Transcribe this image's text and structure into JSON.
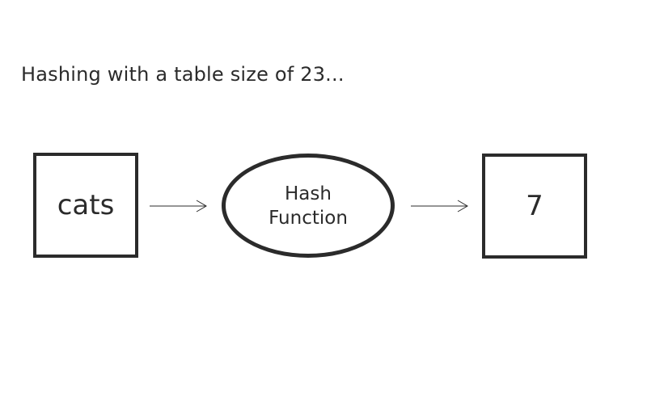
{
  "caption": "Hashing with a table size of 23...",
  "diagram": {
    "input_label": "cats",
    "function_line1": "Hash",
    "function_line2": "Function",
    "output_label": "7"
  }
}
